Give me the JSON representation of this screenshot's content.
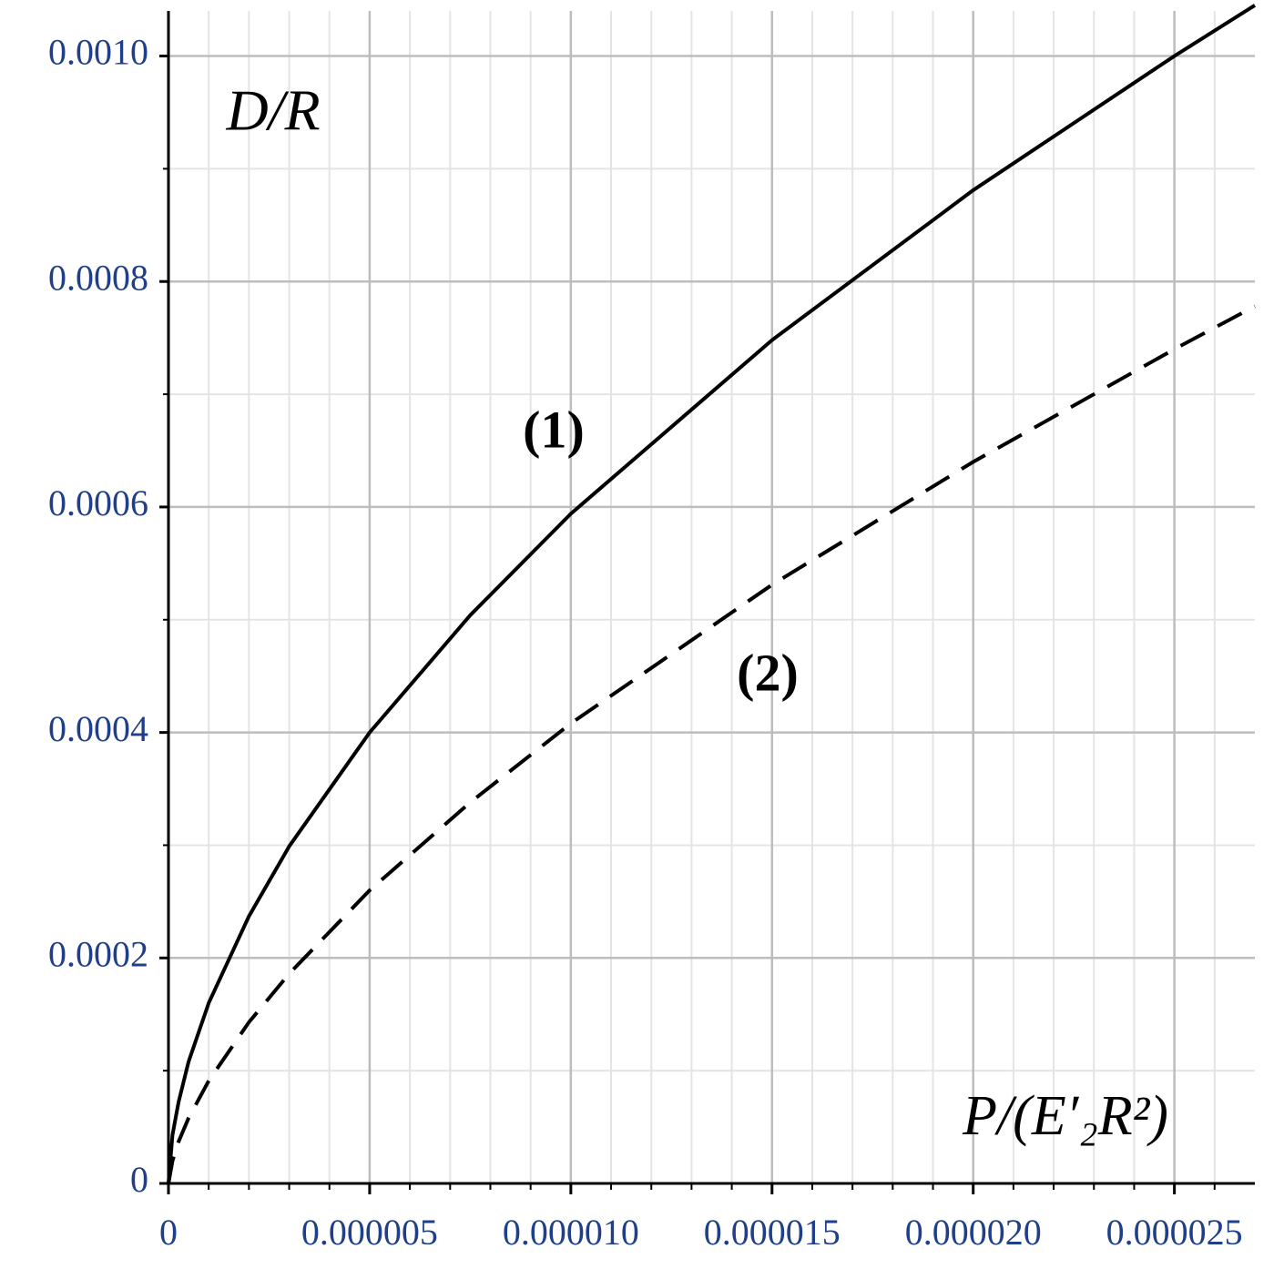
{
  "chart_data": {
    "type": "line",
    "x_label": "P/(E′₂R²)",
    "y_label": "D/R",
    "annotations": [
      "(1)",
      "(2)"
    ],
    "x": [
      0,
      1e-07,
      2.5e-07,
      5e-07,
      1e-06,
      2e-06,
      3e-06,
      5e-06,
      7.5e-06,
      1e-05,
      1.5e-05,
      2e-05,
      2.5e-05,
      2.7e-05
    ],
    "series": [
      {
        "name": "(1)",
        "color": "#000000",
        "style": "solid",
        "values": [
          0,
          4.3e-05,
          7.2e-05,
          0.000108,
          0.00016,
          0.000237,
          0.000299,
          0.0004,
          0.000504,
          0.000594,
          0.000748,
          0.000881,
          0.001,
          0.001045
        ]
      },
      {
        "name": "(2)",
        "color": "#000000",
        "style": "dashed",
        "values": [
          0,
          2e-05,
          3.7e-05,
          5.8e-05,
          9.1e-05,
          0.000143,
          0.000186,
          0.00026,
          0.000338,
          0.000408,
          0.000531,
          0.00064,
          0.00074,
          0.000778
        ]
      }
    ],
    "xlim": [
      0,
      2.7e-05
    ],
    "ylim": [
      0,
      0.00104
    ],
    "xticks": [
      0,
      5e-06,
      {
        "value": 1e-05,
        "label": "0.000010"
      },
      1.5e-05,
      {
        "value": 2e-05,
        "label": "0.000020"
      },
      2.5e-05
    ],
    "yticks": [
      0,
      0.0002,
      0.0004,
      0.0006,
      0.0008,
      {
        "value": 0.001,
        "label": "0.0010"
      }
    ],
    "grid": true,
    "tick_label_color": "#1f3f8a"
  }
}
